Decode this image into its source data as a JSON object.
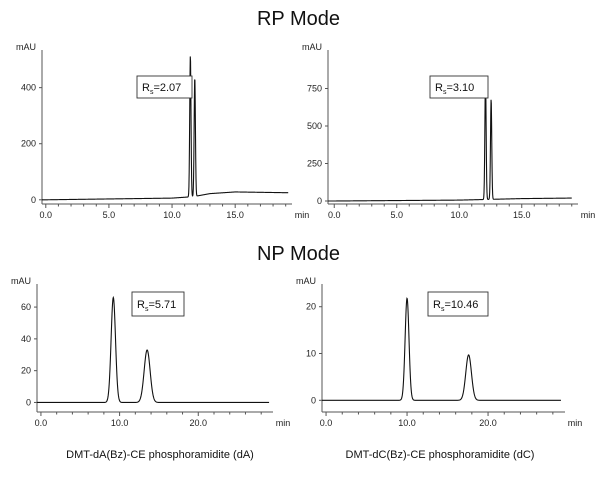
{
  "titles": {
    "rp": "RP Mode",
    "np": "NP Mode"
  },
  "captions": {
    "left": "DMT-dA(Bz)-CE phosphoramidite (dA)",
    "right": "DMT-dC(Bz)-CE phosphoramidite (dC)"
  },
  "chart_data": [
    {
      "type": "line",
      "title": "",
      "ylabel": "mAU",
      "xlabel": "min",
      "xlim": [
        -0.3,
        19.5
      ],
      "ylim": [
        -15,
        520
      ],
      "xticks": [
        0.0,
        5.0,
        10.0,
        15.0
      ],
      "xtick_labels": [
        "0.0",
        "5.0",
        "10.0",
        "15.0"
      ],
      "yticks": [
        0,
        200,
        400
      ],
      "ytick_labels": [
        "0",
        "200",
        "400"
      ],
      "annotation": {
        "label": "R",
        "sub": "s",
        "value": "=2.07"
      },
      "baseline": [
        [
          0,
          0
        ],
        [
          10,
          6
        ],
        [
          11.3,
          10
        ],
        [
          11.9,
          13
        ],
        [
          13,
          22
        ],
        [
          15,
          28
        ],
        [
          19.5,
          25
        ]
      ],
      "peaks": [
        {
          "rt": 11.45,
          "height": 505,
          "width": 0.05
        },
        {
          "rt": 11.8,
          "height": 425,
          "width": 0.05
        }
      ]
    },
    {
      "type": "line",
      "title": "",
      "ylabel": "mAU",
      "xlabel": "min",
      "xlim": [
        -0.5,
        19.5
      ],
      "ylim": [
        -20,
        980
      ],
      "xticks": [
        0.0,
        5.0,
        10.0,
        15.0
      ],
      "xtick_labels": [
        "0.0",
        "5.0",
        "10.0",
        "15.0"
      ],
      "yticks": [
        0,
        250,
        500,
        750
      ],
      "ytick_labels": [
        "0",
        "250",
        "500",
        "750"
      ],
      "annotation": {
        "label": "R",
        "sub": "s",
        "value": "=3.10"
      },
      "baseline": [
        [
          0,
          0
        ],
        [
          10,
          6
        ],
        [
          12,
          10
        ],
        [
          15,
          16
        ],
        [
          19.5,
          20
        ]
      ],
      "peaks": [
        {
          "rt": 12.1,
          "height": 810,
          "width": 0.05
        },
        {
          "rt": 12.55,
          "height": 670,
          "width": 0.05
        }
      ]
    },
    {
      "type": "line",
      "title": "",
      "ylabel": "mAU",
      "xlabel": "min",
      "xlim": [
        -0.5,
        29.5
      ],
      "ylim": [
        -6,
        72
      ],
      "xticks": [
        0.0,
        10.0,
        20.0
      ],
      "xtick_labels": [
        "0.0",
        "10.0",
        "20.0"
      ],
      "yticks": [
        0,
        20,
        40,
        60
      ],
      "ytick_labels": [
        "0",
        "20",
        "40",
        "60"
      ],
      "annotation": {
        "label": "R",
        "sub": "s",
        "value": "=5.71"
      },
      "baseline": [
        [
          0,
          0
        ],
        [
          29.5,
          0
        ]
      ],
      "peaks": [
        {
          "rt": 9.2,
          "height": 66,
          "width": 0.28
        },
        {
          "rt": 13.5,
          "height": 33,
          "width": 0.38
        }
      ]
    },
    {
      "type": "line",
      "title": "",
      "ylabel": "mAU",
      "xlabel": "min",
      "xlim": [
        -0.5,
        29.5
      ],
      "ylim": [
        -2.5,
        24
      ],
      "xticks": [
        0.0,
        10.0,
        20.0
      ],
      "xtick_labels": [
        "0.0",
        "10.0",
        "20.0"
      ],
      "yticks": [
        0,
        10,
        20
      ],
      "ytick_labels": [
        "0",
        "10",
        "20"
      ],
      "annotation": {
        "label": "R",
        "sub": "s",
        "value": "=10.46"
      },
      "baseline": [
        [
          0,
          0
        ],
        [
          29.5,
          0
        ]
      ],
      "peaks": [
        {
          "rt": 10.0,
          "height": 21.8,
          "width": 0.24
        },
        {
          "rt": 17.6,
          "height": 9.7,
          "width": 0.35
        }
      ]
    }
  ]
}
